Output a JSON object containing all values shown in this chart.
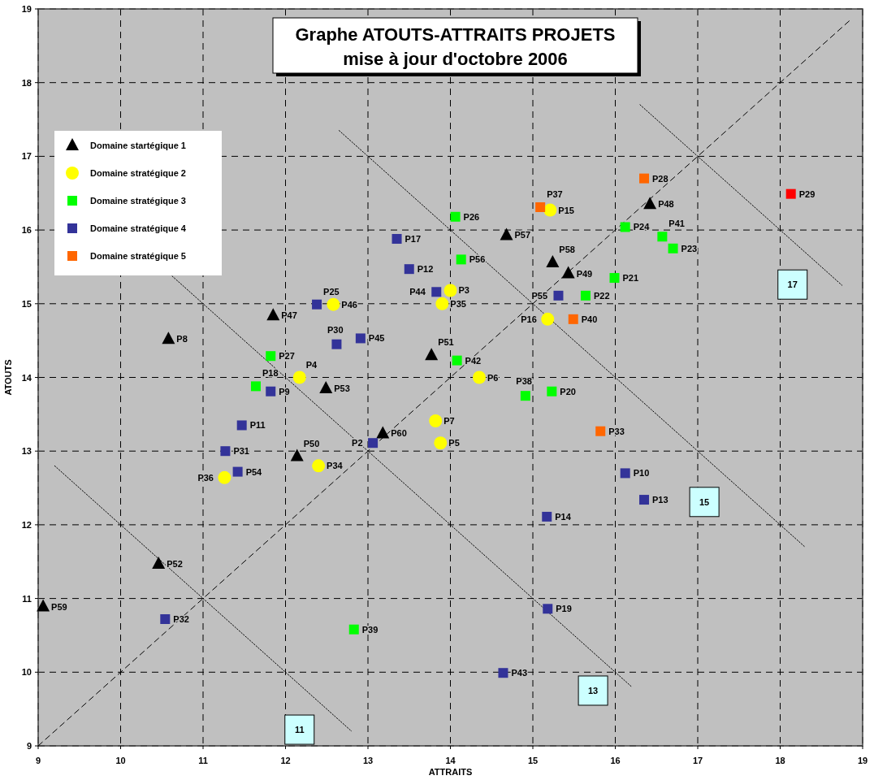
{
  "chart_data": {
    "type": "scatter",
    "title": "Graphe ATOUTS-ATTRAITS  PROJETS",
    "subtitle": "mise à jour d'octobre 2006",
    "xlabel": "ATTRAITS",
    "ylabel": "ATOUTS",
    "xlim": [
      9,
      19
    ],
    "ylim": [
      9,
      19
    ],
    "xticks": [
      9,
      10,
      11,
      12,
      13,
      14,
      15,
      16,
      17,
      18,
      19
    ],
    "yticks": [
      9,
      10,
      11,
      12,
      13,
      14,
      15,
      16,
      17,
      18,
      19
    ],
    "grid": true,
    "legend": "top left",
    "series": [
      {
        "name": "Domaine startégique 1",
        "color": "#000000",
        "marker": "triangle",
        "x": [
          10.58,
          11.85,
          12.49,
          13.77,
          14.68,
          15.24,
          15.43,
          16.42,
          13.18,
          12.14,
          10.46,
          9.06
        ],
        "values": [
          14.52,
          14.84,
          13.85,
          14.3,
          15.93,
          15.56,
          15.41,
          16.35,
          13.24,
          12.93,
          11.47,
          10.89
        ]
      },
      {
        "name": "Domaine stratégique 2",
        "color": "#ffff00",
        "marker": "circle",
        "x": [
          12.58,
          12.17,
          12.4,
          11.26,
          13.82,
          13.88,
          14.0,
          13.9,
          14.35,
          15.21,
          15.18
        ],
        "values": [
          14.99,
          14.0,
          12.8,
          12.64,
          13.41,
          13.11,
          15.18,
          15.0,
          14.0,
          16.27,
          14.79
        ]
      },
      {
        "name": "Domaine stratégique 3",
        "color": "#00ff00",
        "marker": "square",
        "x": [
          11.82,
          11.64,
          12.83,
          14.06,
          14.13,
          14.08,
          14.91,
          15.23,
          15.64,
          15.99,
          16.12,
          16.57,
          16.7
        ],
        "values": [
          14.29,
          13.88,
          10.58,
          16.18,
          15.6,
          14.23,
          13.75,
          13.81,
          15.11,
          15.35,
          16.04,
          15.91,
          15.75
        ]
      },
      {
        "name": "Domaine stratégique 4",
        "color": "#333399",
        "marker": "square",
        "x": [
          13.35,
          13.5,
          13.83,
          12.38,
          12.62,
          12.91,
          11.82,
          11.47,
          11.27,
          11.42,
          13.06,
          10.54,
          14.64,
          15.18,
          15.17,
          16.12,
          16.35,
          15.31
        ],
        "values": [
          15.88,
          15.47,
          15.16,
          14.99,
          14.45,
          14.53,
          13.81,
          13.35,
          13.0,
          12.72,
          13.11,
          10.72,
          9.99,
          10.86,
          12.11,
          12.7,
          12.34,
          15.11
        ]
      },
      {
        "name": "Domaine stratégique 5",
        "color": "#ff6600",
        "colors": [
          "#ff6600",
          "#ff6600",
          "#ff6600",
          "#ff6600",
          "#ff0000"
        ],
        "marker": "square",
        "x": [
          15.09,
          16.35,
          15.49,
          15.82,
          18.13
        ],
        "values": [
          16.31,
          16.7,
          14.79,
          13.27,
          16.49
        ]
      },
      {
        "type": "line",
        "color": "#000000",
        "line_style": "dashed",
        "x": [
          9,
          18.85
        ],
        "values": [
          9,
          18.85
        ]
      },
      {
        "type": "line",
        "color": "#000000",
        "line_style": "dotted",
        "x": [
          9.2,
          12.8
        ],
        "values": [
          12.8,
          9.2
        ]
      },
      {
        "type": "line",
        "color": "#000000",
        "line_style": "dotted",
        "x": [
          10.6,
          16.2
        ],
        "values": [
          15.4,
          9.8
        ]
      },
      {
        "type": "line",
        "color": "#000000",
        "line_style": "dotted",
        "x": [
          12.65,
          18.3
        ],
        "values": [
          17.35,
          11.7
        ]
      },
      {
        "type": "line",
        "color": "#000000",
        "line_style": "dotted",
        "x": [
          16.3,
          18.75
        ],
        "values": [
          17.7,
          15.25
        ]
      }
    ],
    "annotations": [
      {
        "text": "P8",
        "x": 10.58,
        "y": 14.52
      },
      {
        "text": "P47",
        "x": 11.85,
        "y": 14.84
      },
      {
        "text": "P53",
        "x": 12.49,
        "y": 13.85
      },
      {
        "text": "P51",
        "x": 13.77,
        "y": 14.3
      },
      {
        "text": "P57",
        "x": 14.68,
        "y": 15.93
      },
      {
        "text": "P58",
        "x": 15.24,
        "y": 15.56
      },
      {
        "text": "P49",
        "x": 15.43,
        "y": 15.41
      },
      {
        "text": "P48",
        "x": 16.42,
        "y": 16.35
      },
      {
        "text": "P60",
        "x": 13.18,
        "y": 13.24
      },
      {
        "text": "P50",
        "x": 12.14,
        "y": 12.93
      },
      {
        "text": "P52",
        "x": 10.46,
        "y": 11.47
      },
      {
        "text": "P59",
        "x": 9.06,
        "y": 10.89
      },
      {
        "text": "P46",
        "x": 12.58,
        "y": 14.99
      },
      {
        "text": "P4",
        "x": 12.17,
        "y": 14.0
      },
      {
        "text": "P34",
        "x": 12.4,
        "y": 12.8
      },
      {
        "text": "P36",
        "x": 11.26,
        "y": 12.64
      },
      {
        "text": "P7",
        "x": 13.82,
        "y": 13.41
      },
      {
        "text": "P5",
        "x": 13.88,
        "y": 13.11
      },
      {
        "text": "P3",
        "x": 14.0,
        "y": 15.18
      },
      {
        "text": "P35",
        "x": 13.9,
        "y": 15.0
      },
      {
        "text": "P6",
        "x": 14.35,
        "y": 14.0
      },
      {
        "text": "P15",
        "x": 15.21,
        "y": 16.27
      },
      {
        "text": "P16",
        "x": 15.18,
        "y": 14.79
      },
      {
        "text": "P27",
        "x": 11.82,
        "y": 14.29
      },
      {
        "text": "P18",
        "x": 11.64,
        "y": 13.88
      },
      {
        "text": "P39",
        "x": 12.83,
        "y": 10.58
      },
      {
        "text": "P26",
        "x": 14.06,
        "y": 16.18
      },
      {
        "text": "P56",
        "x": 14.13,
        "y": 15.6
      },
      {
        "text": "P42",
        "x": 14.08,
        "y": 14.23
      },
      {
        "text": "P38",
        "x": 14.91,
        "y": 13.75
      },
      {
        "text": "P20",
        "x": 15.23,
        "y": 13.81
      },
      {
        "text": "P22",
        "x": 15.64,
        "y": 15.11
      },
      {
        "text": "P21",
        "x": 15.99,
        "y": 15.35
      },
      {
        "text": "P24",
        "x": 16.12,
        "y": 16.04
      },
      {
        "text": "P41",
        "x": 16.57,
        "y": 15.91
      },
      {
        "text": "P23",
        "x": 16.7,
        "y": 15.75
      },
      {
        "text": "P17",
        "x": 13.35,
        "y": 15.88
      },
      {
        "text": "P12",
        "x": 13.5,
        "y": 15.47
      },
      {
        "text": "P44",
        "x": 13.83,
        "y": 15.16
      },
      {
        "text": "P25",
        "x": 12.38,
        "y": 14.99
      },
      {
        "text": "P30",
        "x": 12.62,
        "y": 14.45
      },
      {
        "text": "P45",
        "x": 12.91,
        "y": 14.53
      },
      {
        "text": "P9",
        "x": 11.82,
        "y": 13.81
      },
      {
        "text": "P11",
        "x": 11.47,
        "y": 13.35
      },
      {
        "text": "P31",
        "x": 11.27,
        "y": 13.0
      },
      {
        "text": "P54",
        "x": 11.42,
        "y": 12.72
      },
      {
        "text": "P2",
        "x": 13.06,
        "y": 13.11
      },
      {
        "text": "P32",
        "x": 10.54,
        "y": 10.72
      },
      {
        "text": "P43",
        "x": 14.64,
        "y": 9.99
      },
      {
        "text": "P19",
        "x": 15.18,
        "y": 10.86
      },
      {
        "text": "P14",
        "x": 15.17,
        "y": 12.11
      },
      {
        "text": "P10",
        "x": 16.12,
        "y": 12.7
      },
      {
        "text": "P13",
        "x": 16.35,
        "y": 12.34
      },
      {
        "text": "P55",
        "x": 15.31,
        "y": 15.11
      },
      {
        "text": "P37",
        "x": 15.09,
        "y": 16.31
      },
      {
        "text": "P28",
        "x": 16.35,
        "y": 16.7
      },
      {
        "text": "P40",
        "x": 15.49,
        "y": 14.79
      },
      {
        "text": "P33",
        "x": 15.82,
        "y": 13.27
      },
      {
        "text": "P29",
        "x": 18.13,
        "y": 16.49
      },
      {
        "text": "11",
        "x": 12.17,
        "y": 9.22
      },
      {
        "text": "13",
        "x": 15.73,
        "y": 9.75
      },
      {
        "text": "15",
        "x": 17.08,
        "y": 12.31
      },
      {
        "text": "17",
        "x": 18.15,
        "y": 15.26
      }
    ]
  }
}
